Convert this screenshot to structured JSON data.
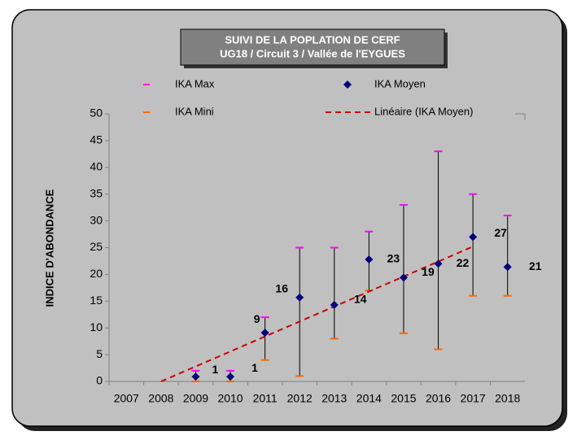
{
  "chart_data": {
    "type": "errorbar",
    "title": [
      "SUIVI DE LA POPLATION DE CERF",
      "UG18 / Circuit 3 / Vallée de l'EYGUES"
    ],
    "y_label": "INDICE D'ABONDANCE",
    "categories": [
      "2007",
      "2008",
      "2009",
      "2010",
      "2011",
      "2012",
      "2013",
      "2014",
      "2015",
      "2016",
      "2017",
      "2018"
    ],
    "series": [
      {
        "name": "IKA Max",
        "color": "#ff00ff",
        "values": [
          null,
          null,
          2,
          2,
          12,
          25,
          25,
          28,
          33,
          43,
          35,
          31
        ]
      },
      {
        "name": "IKA Mini",
        "color": "#ff6600",
        "values": [
          null,
          null,
          0,
          0,
          4,
          1,
          8,
          17,
          9,
          6,
          16,
          16
        ]
      },
      {
        "name": "IKA Moyen",
        "color": "#000080",
        "values": [
          null,
          null,
          0.9,
          0.9,
          9.1,
          15.7,
          14.3,
          22.8,
          19.4,
          22,
          27,
          21.4
        ],
        "value_labels": [
          null,
          null,
          "1",
          "1",
          "9",
          "16",
          "14",
          "23",
          "19",
          "22",
          "27",
          "21"
        ]
      },
      {
        "name": "Linéaire (IKA Moyen)",
        "color": "#cc0000",
        "values": [
          null,
          0,
          2.8,
          5.6,
          8.4,
          11.2,
          14,
          16.8,
          19.6,
          22.4,
          25.2,
          null
        ]
      }
    ],
    "ylim": [
      0,
      50
    ],
    "yticks": [
      0,
      5,
      10,
      15,
      20,
      25,
      30,
      35,
      40,
      45,
      50
    ]
  }
}
